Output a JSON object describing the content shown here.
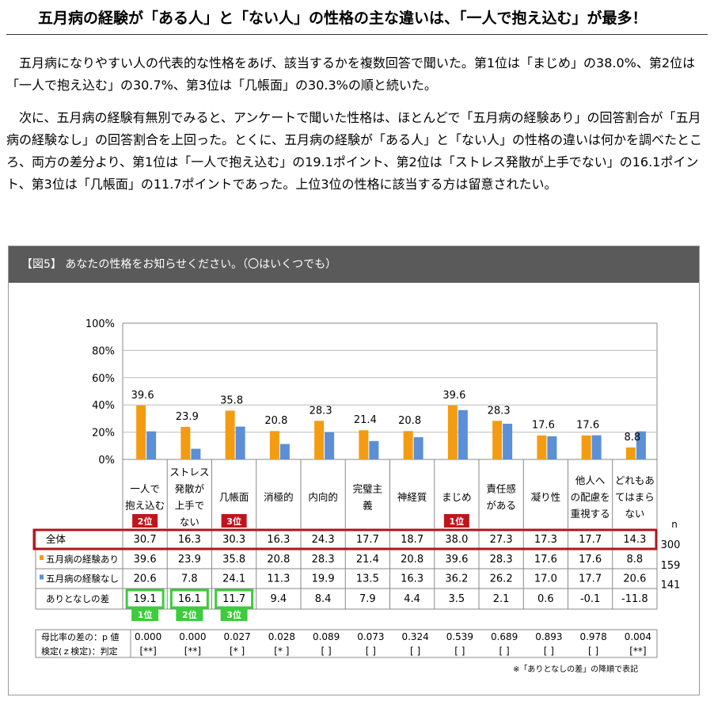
{
  "heading": "五月病の経験が「ある人」と「ない人」の性格の主な違いは、「一人で抱え込む」が最多！",
  "paragraphs": [
    "五月病になりやすい人の代表的な性格をあげ、該当するかを複数回答で聞いた。第1位は「まじめ」の38.0%、第2位は「一人で抱え込む」の30.7%、第3位は「几帳面」の30.3%の順と続いた。",
    "次に、五月病の経験有無別でみると、アンケートで聞いた性格は、ほとんどで「五月病の経験あり」の回答割合が「五月病の経験なし」の回答割合を上回った。とくに、五月病の経験が「ある人」と「ない人」の性格の違いは何かを調べたところ、両方の差分より、第1位は「一人で抱え込む」の19.1ポイント、第2位は「ストレス発散が上手でない」の16.1ポイント、第3位は「几帳面」の11.7ポイントであった。上位3位の性格に該当する方は留意されたい。"
  ],
  "figure": {
    "caption": "【図5】 あなたの性格をお知らせください。（〇はいくつでも）",
    "note": "※「ありとなしの差」の降順で表記",
    "n_label": "n",
    "rank_badges_red": {
      "c0": "2位",
      "c2": "3位",
      "c7": "1位"
    },
    "rank_badges_green": {
      "c0": "1位",
      "c1": "2位",
      "c2": "3位"
    },
    "test_label_line1": "母比率の差の：p 値",
    "test_label_line2": "検定(ｚ検定)：判定",
    "p_values": [
      "0.000",
      "0.000",
      "0.027",
      "0.028",
      "0.089",
      "0.073",
      "0.324",
      "0.539",
      "0.689",
      "0.893",
      "0.978",
      "0.004"
    ],
    "judgments": [
      "[**]",
      "[**]",
      "[* ]",
      "[* ]",
      "[  ]",
      "[  ]",
      "[  ]",
      "[  ]",
      "[  ]",
      "[  ]",
      "[  ]",
      "[**]"
    ]
  },
  "chart_data": {
    "type": "bar",
    "categories": [
      [
        "一人で",
        "抱え込む"
      ],
      [
        "ストレス",
        "発散が",
        "上手で",
        "ない"
      ],
      [
        "几帳面"
      ],
      [
        "消極的"
      ],
      [
        "内向的"
      ],
      [
        "完璧主",
        "義"
      ],
      [
        "神経質"
      ],
      [
        "まじめ"
      ],
      [
        "責任感",
        "がある"
      ],
      [
        "凝り性"
      ],
      [
        "他人へ",
        "の配慮を",
        "重視する"
      ],
      [
        "どれもあ",
        "てはまら",
        "ない"
      ]
    ],
    "series": [
      {
        "name": "五月病の経験あり",
        "color": "#f39c12",
        "values": [
          39.6,
          23.9,
          35.8,
          20.8,
          28.3,
          21.4,
          20.8,
          39.6,
          28.3,
          17.6,
          17.6,
          8.8
        ]
      },
      {
        "name": "五月病の経験なし",
        "color": "#5b8fd6",
        "values": [
          20.6,
          7.8,
          24.1,
          11.3,
          19.9,
          13.5,
          16.3,
          36.2,
          26.2,
          17.0,
          17.7,
          20.6
        ]
      }
    ],
    "y_ticks": [
      "0%",
      "20%",
      "40%",
      "60%",
      "80%",
      "100%"
    ],
    "ylim": [
      0,
      100
    ],
    "table_rows": [
      {
        "label": "全体",
        "values": [
          "30.7",
          "16.3",
          "30.3",
          "16.3",
          "24.3",
          "17.7",
          "18.7",
          "38.0",
          "27.3",
          "17.3",
          "17.7",
          "14.3"
        ],
        "n": "300"
      },
      {
        "label": "五月病の経験あり",
        "values": [
          "39.6",
          "23.9",
          "35.8",
          "20.8",
          "28.3",
          "21.4",
          "20.8",
          "39.6",
          "28.3",
          "17.6",
          "17.6",
          "8.8"
        ],
        "n": "159"
      },
      {
        "label": "五月病の経験なし",
        "values": [
          "20.6",
          "7.8",
          "24.1",
          "11.3",
          "19.9",
          "13.5",
          "16.3",
          "36.2",
          "26.2",
          "17.0",
          "17.7",
          "20.6"
        ],
        "n": "141"
      },
      {
        "label": "ありとなしの差",
        "values": [
          "19.1",
          "16.1",
          "11.7",
          "9.4",
          "8.4",
          "7.9",
          "4.4",
          "3.5",
          "2.1",
          "0.6",
          "-0.1",
          "-11.8"
        ],
        "n": ""
      }
    ]
  }
}
